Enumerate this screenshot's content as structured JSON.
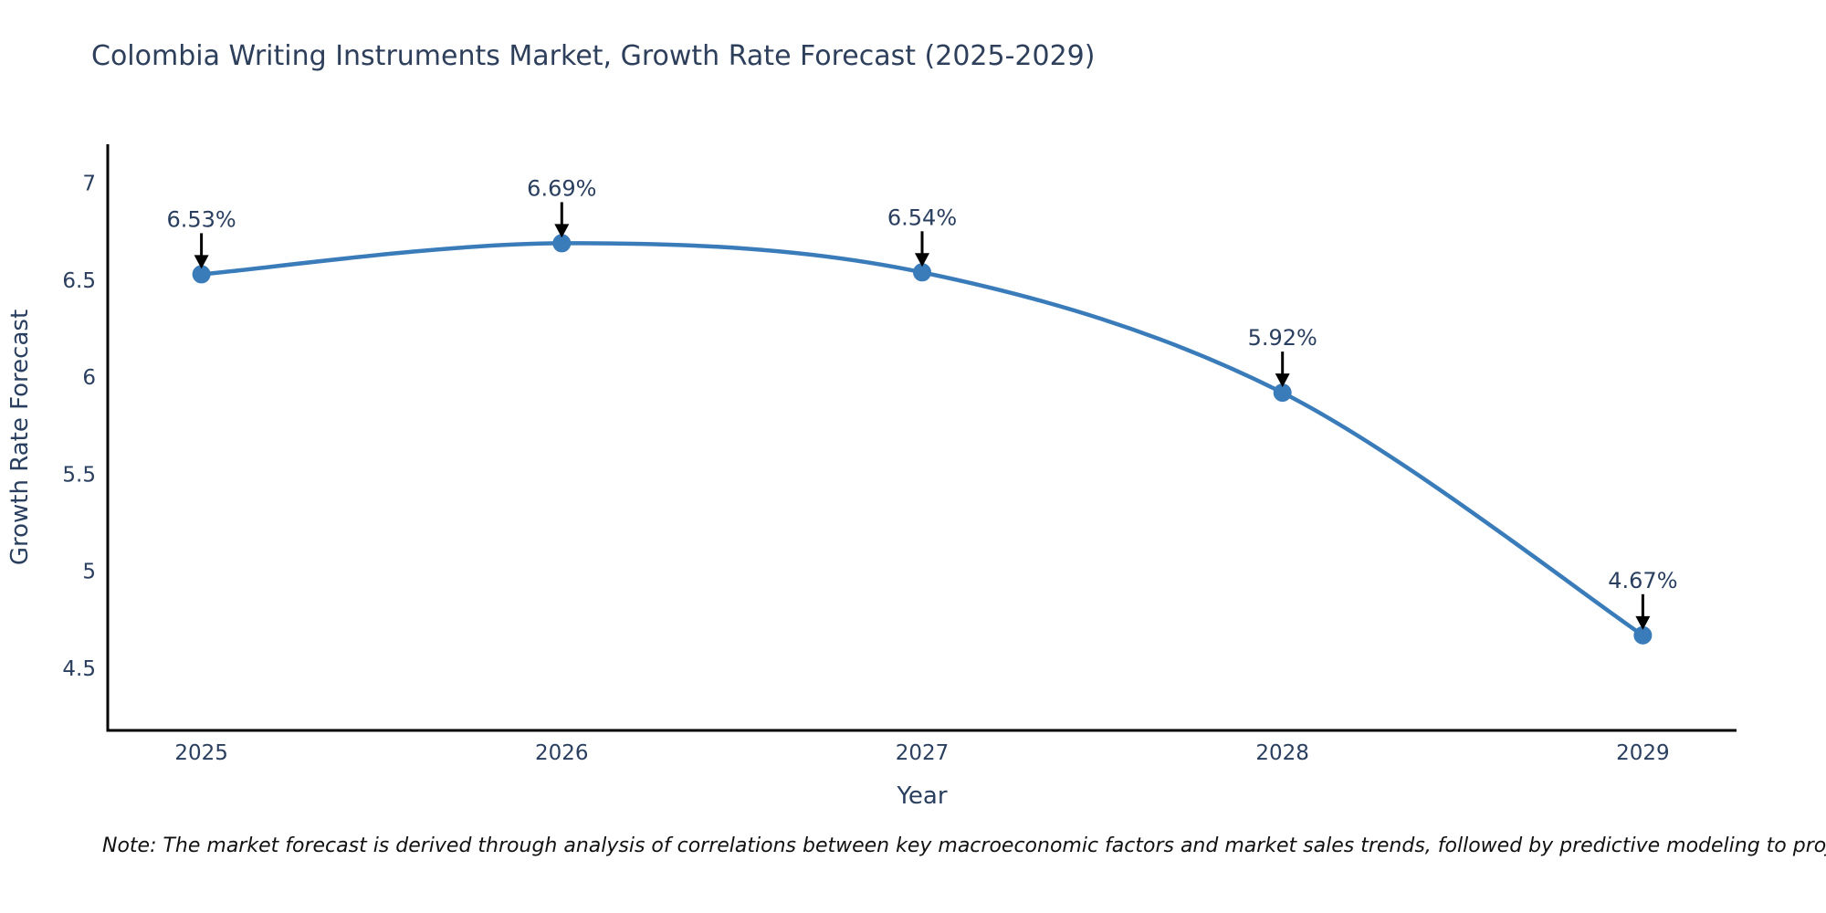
{
  "chart_data": {
    "type": "line",
    "title": "Colombia Writing Instruments Market, Growth Rate Forecast (2025-2029)",
    "xlabel": "Year",
    "ylabel": "Growth Rate Forecast",
    "x": [
      2025,
      2026,
      2027,
      2028,
      2029
    ],
    "series": [
      {
        "name": "Growth Rate Forecast",
        "values": [
          6.53,
          6.69,
          6.54,
          5.92,
          4.67
        ]
      }
    ],
    "point_labels": [
      "6.53%",
      "6.69%",
      "6.54%",
      "5.92%",
      "4.67%"
    ],
    "xtick_labels": [
      "2025",
      "2026",
      "2027",
      "2028",
      "2029"
    ],
    "ytick_values": [
      7,
      6.5,
      6,
      5.5,
      5,
      4.5
    ],
    "ytick_labels": [
      "7",
      "6.5",
      "6",
      "5.5",
      "5",
      "4.5"
    ],
    "xlim": [
      2024.74,
      2029.26
    ],
    "ylim": [
      4.18,
      7.2
    ],
    "grid": false,
    "legend_position": "none",
    "line_shape": "spline",
    "colors": {
      "line": "#3a7cba",
      "marker": "#3a7cba",
      "axis": "#000000",
      "arrow": "#000000",
      "text": "#2a3f5f",
      "annotation_text": "#2a3f5f"
    }
  },
  "note": {
    "text": "Note: The market forecast is derived through analysis of correlations between key macroeconomic factors and market sales trends, followed by predictive modeling to project future sales"
  }
}
